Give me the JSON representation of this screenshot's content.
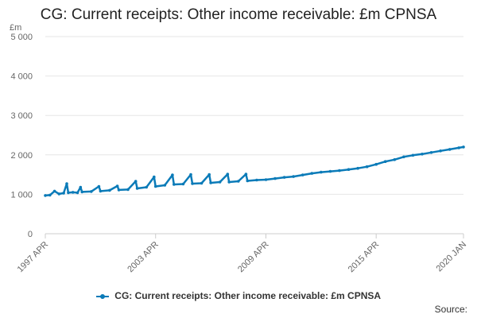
{
  "chart_data": {
    "type": "line",
    "title": "CG: Current receipts: Other income receivable: £m CPNSA",
    "ylabel": "£m",
    "xlabel": "",
    "ylim": [
      0,
      5000
    ],
    "yticks": [
      0,
      1000,
      2000,
      3000,
      4000,
      5000
    ],
    "ytick_labels": [
      "0",
      "1 000",
      "2 000",
      "3 000",
      "4 000",
      "5 000"
    ],
    "xlim": [
      "1997-04",
      "2020-01"
    ],
    "xticks": [
      "1997-04",
      "2003-04",
      "2009-04",
      "2015-04",
      "2020-01"
    ],
    "xtick_labels": [
      "1997 APR",
      "2003 APR",
      "2009 APR",
      "2015 APR",
      "2020 JAN"
    ],
    "grid": true,
    "legend_position": "bottom",
    "series": [
      {
        "name": "CG: Current receipts: Other income receivable: £m CPNSA",
        "color": "#0b7bb8",
        "points": [
          [
            "1997-04",
            970
          ],
          [
            "1997-07",
            980
          ],
          [
            "1997-10",
            1080
          ],
          [
            "1998-01",
            1010
          ],
          [
            "1998-04",
            1030
          ],
          [
            "1998-06",
            1270
          ],
          [
            "1998-07",
            1040
          ],
          [
            "1998-10",
            1050
          ],
          [
            "1999-01",
            1040
          ],
          [
            "1999-03",
            1180
          ],
          [
            "1999-04",
            1060
          ],
          [
            "1999-10",
            1070
          ],
          [
            "2000-03",
            1200
          ],
          [
            "2000-04",
            1080
          ],
          [
            "2000-10",
            1100
          ],
          [
            "2001-03",
            1210
          ],
          [
            "2001-04",
            1110
          ],
          [
            "2001-10",
            1120
          ],
          [
            "2002-03",
            1330
          ],
          [
            "2002-04",
            1150
          ],
          [
            "2002-10",
            1180
          ],
          [
            "2003-03",
            1440
          ],
          [
            "2003-04",
            1200
          ],
          [
            "2003-10",
            1230
          ],
          [
            "2004-03",
            1490
          ],
          [
            "2004-04",
            1250
          ],
          [
            "2004-10",
            1260
          ],
          [
            "2005-03",
            1500
          ],
          [
            "2005-04",
            1270
          ],
          [
            "2005-10",
            1280
          ],
          [
            "2006-03",
            1500
          ],
          [
            "2006-04",
            1290
          ],
          [
            "2006-10",
            1310
          ],
          [
            "2007-03",
            1510
          ],
          [
            "2007-04",
            1310
          ],
          [
            "2007-10",
            1330
          ],
          [
            "2008-03",
            1510
          ],
          [
            "2008-04",
            1340
          ],
          [
            "2008-10",
            1360
          ],
          [
            "2009-04",
            1370
          ],
          [
            "2009-10",
            1400
          ],
          [
            "2010-04",
            1430
          ],
          [
            "2010-10",
            1450
          ],
          [
            "2011-04",
            1490
          ],
          [
            "2011-10",
            1530
          ],
          [
            "2012-04",
            1560
          ],
          [
            "2012-10",
            1580
          ],
          [
            "2013-04",
            1600
          ],
          [
            "2013-10",
            1630
          ],
          [
            "2014-04",
            1660
          ],
          [
            "2014-10",
            1700
          ],
          [
            "2015-04",
            1760
          ],
          [
            "2015-10",
            1830
          ],
          [
            "2016-04",
            1880
          ],
          [
            "2016-10",
            1950
          ],
          [
            "2017-04",
            1990
          ],
          [
            "2017-10",
            2020
          ],
          [
            "2018-04",
            2060
          ],
          [
            "2018-10",
            2100
          ],
          [
            "2019-04",
            2140
          ],
          [
            "2019-10",
            2180
          ],
          [
            "2020-01",
            2200
          ]
        ]
      }
    ]
  },
  "legend": {
    "label": "CG: Current receipts: Other income receivable: £m CPNSA"
  },
  "footer": {
    "source": "Source:"
  }
}
